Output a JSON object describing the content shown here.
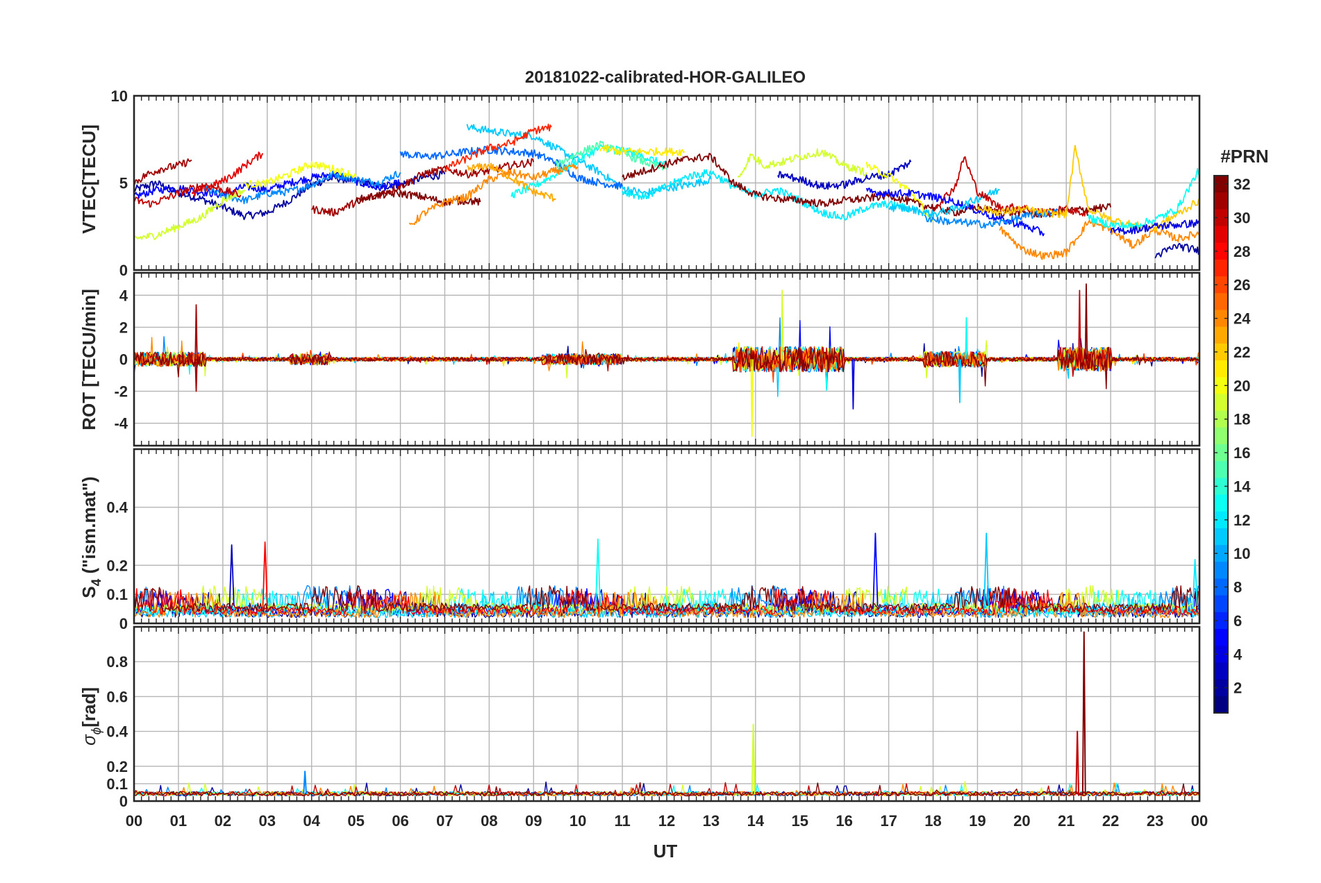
{
  "title": "20181022-calibrated-HOR-GALILEO",
  "xlabel": "UT",
  "x_tick_labels": [
    "00",
    "01",
    "02",
    "03",
    "04",
    "05",
    "06",
    "07",
    "08",
    "09",
    "10",
    "11",
    "12",
    "13",
    "14",
    "15",
    "16",
    "17",
    "18",
    "19",
    "20",
    "21",
    "22",
    "23",
    "00"
  ],
  "colorbar": {
    "title": "#PRN",
    "range": [
      1,
      32
    ],
    "tick_labels": [
      "2",
      "4",
      "6",
      "8",
      "10",
      "12",
      "14",
      "16",
      "18",
      "20",
      "22",
      "24",
      "26",
      "28",
      "30",
      "32"
    ],
    "colormap": "jet"
  },
  "panel_labels": {
    "vtec": "VTEC[TECU]",
    "rot": "ROT [TECU/min]",
    "s4_main": "S",
    "s4_sub": "4",
    "s4_rest": " (\"ism.mat\")",
    "sigma_main": "σ",
    "sigma_sub": "ϕ",
    "sigma_rest": "[rad]"
  },
  "chart_data": [
    {
      "type": "line",
      "name": "vtec",
      "ylabel": "VTEC[TECU]",
      "xlim": [
        0,
        24
      ],
      "ylim": [
        0,
        10
      ],
      "yticks": [
        0,
        5,
        10
      ],
      "series": [
        {
          "prn": 2,
          "x": [
            0.0,
            0.5,
            1.0,
            1.5,
            2.0,
            2.5,
            3.0,
            3.5,
            4.0,
            4.5,
            5.0,
            5.5,
            6.0,
            6.5,
            7.0
          ],
          "values": [
            4.6,
            5.0,
            4.4,
            4.1,
            3.6,
            3.1,
            3.3,
            4.0,
            4.9,
            5.3,
            5.1,
            4.8,
            4.9,
            5.3,
            5.5
          ]
        },
        {
          "prn": 5,
          "x": [
            0.0,
            0.5,
            1.0,
            1.5,
            2.0,
            2.5,
            3.0,
            3.5,
            4.0,
            4.5,
            5.0,
            5.5,
            6.0
          ],
          "values": [
            4.2,
            4.6,
            4.7,
            4.5,
            4.3,
            4.8,
            4.6,
            5.0,
            5.3,
            5.5,
            5.1,
            4.7,
            5.0
          ]
        },
        {
          "prn": 9,
          "x": [
            1.5,
            2.0,
            2.5,
            3.0,
            3.5,
            4.0,
            4.5,
            5.0,
            5.5,
            6.0
          ],
          "values": [
            4.7,
            4.3,
            4.0,
            4.4,
            4.5,
            4.9,
            5.5,
            5.2,
            5.0,
            5.6
          ]
        },
        {
          "prn": 11,
          "x": [
            7.5,
            8.0,
            8.5,
            9.0,
            9.5,
            10.0,
            10.5,
            11.0,
            11.5,
            12.0,
            12.5,
            13.0
          ],
          "values": [
            8.2,
            8.0,
            7.8,
            7.7,
            7.0,
            6.3,
            5.6,
            4.7,
            4.4,
            4.7,
            4.9,
            5.2
          ]
        },
        {
          "prn": 8,
          "x": [
            6.0,
            6.5,
            7.0,
            7.5,
            8.0,
            8.5,
            9.0,
            9.5,
            10.0,
            10.5,
            11.0
          ],
          "values": [
            6.7,
            6.5,
            6.6,
            6.8,
            6.9,
            6.8,
            6.7,
            6.2,
            5.3,
            5.0,
            4.8
          ]
        },
        {
          "prn": 13,
          "x": [
            8.5,
            9.0,
            9.5,
            10.0,
            10.5,
            11.0,
            11.5,
            12.0
          ],
          "values": [
            4.3,
            4.8,
            5.5,
            6.3,
            7.0,
            6.9,
            6.5,
            6.0
          ]
        },
        {
          "prn": 19,
          "x": [
            0.0,
            0.5,
            1.0,
            1.5,
            2.0,
            2.5
          ],
          "values": [
            1.8,
            2.0,
            2.5,
            3.0,
            4.0,
            4.6
          ]
        },
        {
          "prn": 20,
          "x": [
            2.5,
            3.0,
            3.5,
            4.0,
            4.5,
            5.0
          ],
          "values": [
            4.9,
            5.0,
            5.5,
            6.1,
            5.8,
            5.4
          ]
        },
        {
          "prn": 29,
          "x": [
            1.3,
            1.7,
            2.0,
            2.3,
            2.6,
            2.9
          ],
          "values": [
            4.3,
            4.8,
            5.1,
            5.6,
            6.2,
            6.7
          ]
        },
        {
          "prn": 31,
          "x": [
            0.0,
            0.3,
            0.6,
            1.0,
            1.3
          ],
          "values": [
            5.0,
            5.5,
            5.8,
            6.0,
            6.3
          ]
        },
        {
          "prn": 30,
          "x": [
            0.0,
            0.4,
            0.8,
            1.2,
            1.6,
            2.0,
            2.4
          ],
          "values": [
            4.0,
            3.8,
            4.2,
            4.6,
            4.9,
            4.6,
            4.3
          ]
        },
        {
          "prn": 31,
          "x": [
            4.0,
            4.5,
            5.0,
            5.5,
            6.0,
            6.5,
            7.0,
            7.5,
            8.0,
            8.5,
            9.0
          ],
          "values": [
            3.5,
            3.3,
            3.9,
            4.3,
            4.8,
            5.5,
            5.8,
            5.5,
            5.7,
            6.0,
            6.2
          ]
        },
        {
          "prn": 32,
          "x": [
            5.0,
            5.5,
            6.0,
            6.5,
            7.0,
            7.5,
            7.8
          ],
          "values": [
            4.0,
            4.3,
            4.4,
            4.2,
            3.9,
            4.0,
            3.9
          ]
        },
        {
          "prn": 24,
          "x": [
            6.2,
            6.5,
            7.0,
            7.5,
            8.0,
            8.5,
            9.0,
            9.5,
            10.0
          ],
          "values": [
            2.5,
            3.2,
            3.9,
            4.2,
            5.2,
            5.6,
            5.3,
            5.7,
            5.9
          ]
        },
        {
          "prn": 23,
          "x": [
            7.5,
            8.0,
            8.5,
            9.0,
            9.5
          ],
          "values": [
            5.8,
            6.0,
            5.3,
            4.5,
            4.1
          ]
        },
        {
          "prn": 27,
          "x": [
            7.0,
            7.5,
            8.0,
            8.5,
            9.0,
            9.4
          ],
          "values": [
            5.8,
            6.4,
            7.0,
            7.3,
            8.0,
            8.2
          ]
        },
        {
          "prn": 15,
          "x": [
            9.5,
            10.0,
            10.5,
            11.0,
            11.5,
            12.0
          ],
          "values": [
            6.0,
            6.7,
            7.2,
            6.7,
            6.2,
            5.8
          ]
        },
        {
          "prn": 21,
          "x": [
            10.5,
            11.0,
            11.5,
            12.0,
            12.4
          ],
          "values": [
            7.0,
            6.8,
            6.8,
            6.8,
            6.8
          ]
        },
        {
          "prn": 12,
          "x": [
            11.0,
            11.5,
            12.0,
            12.5,
            13.0,
            13.5,
            14.0,
            14.5,
            15.0,
            15.5,
            16.0,
            16.5,
            17.0,
            17.5
          ],
          "values": [
            4.5,
            4.2,
            4.8,
            5.4,
            5.6,
            4.8,
            4.3,
            4.6,
            4.0,
            3.3,
            3.0,
            3.6,
            3.8,
            3.5
          ]
        },
        {
          "prn": 32,
          "x": [
            11.0,
            11.5,
            12.0,
            12.5,
            13.0,
            13.5,
            14.0,
            14.5,
            15.0,
            15.5,
            16.0,
            16.5,
            17.0,
            17.5,
            18.0,
            18.5,
            19.0,
            19.5,
            20.0,
            20.5,
            21.0,
            21.5,
            22.0
          ],
          "values": [
            5.3,
            5.7,
            6.1,
            6.4,
            6.5,
            5.0,
            4.3,
            4.1,
            4.0,
            3.8,
            4.0,
            4.1,
            4.3,
            3.9,
            3.6,
            3.3,
            3.6,
            3.3,
            3.3,
            3.2,
            3.4,
            3.5,
            3.6
          ]
        },
        {
          "prn": 3,
          "x": [
            14.5,
            15.0,
            15.5,
            16.0,
            16.5,
            17.0,
            17.5
          ],
          "values": [
            5.5,
            5.2,
            4.8,
            4.9,
            5.3,
            5.5,
            6.2
          ]
        },
        {
          "prn": 19,
          "x": [
            13.6,
            13.9,
            14.2,
            14.6,
            15.0,
            15.5,
            16.0,
            16.5
          ],
          "values": [
            5.2,
            6.6,
            6.0,
            6.2,
            6.5,
            6.8,
            6.0,
            5.6
          ]
        },
        {
          "prn": 20,
          "x": [
            16.5,
            17.0,
            17.5,
            18.0
          ],
          "values": [
            6.0,
            5.4,
            4.5,
            2.8
          ]
        },
        {
          "prn": 5,
          "x": [
            16.5,
            17.0,
            17.5,
            18.0,
            18.5,
            19.0,
            19.5,
            20.0,
            20.5
          ],
          "values": [
            4.5,
            4.4,
            4.4,
            4.2,
            3.9,
            3.4,
            2.9,
            2.6,
            2.1
          ]
        },
        {
          "prn": 11,
          "x": [
            17.0,
            17.5,
            18.0,
            18.5,
            19.0,
            19.5
          ],
          "values": [
            3.6,
            3.5,
            3.2,
            3.5,
            4.1,
            4.6
          ]
        },
        {
          "prn": 30,
          "x": [
            18.0,
            18.5,
            18.7,
            19.0,
            19.5,
            20.0,
            20.5,
            21.0,
            21.5
          ],
          "values": [
            3.5,
            4.8,
            6.5,
            4.5,
            3.6,
            3.6,
            3.3,
            3.5,
            3.2
          ]
        },
        {
          "prn": 9,
          "x": [
            17.8,
            18.3,
            18.8,
            19.3,
            19.8,
            20.3,
            20.8
          ],
          "values": [
            3.0,
            2.8,
            2.7,
            2.6,
            2.9,
            3.2,
            3.3
          ]
        },
        {
          "prn": 24,
          "x": [
            19.5,
            20.0,
            20.5,
            21.0,
            21.5,
            22.0,
            22.5,
            23.0,
            23.5,
            24.0
          ],
          "values": [
            2.4,
            1.2,
            0.8,
            1.0,
            2.8,
            2.3,
            1.4,
            2.3,
            1.8,
            2.1
          ]
        },
        {
          "prn": 22,
          "x": [
            19.0,
            19.5,
            20.0,
            20.5,
            21.0,
            21.2,
            21.5,
            22.0,
            22.5,
            23.0,
            23.5,
            24.0
          ],
          "values": [
            3.6,
            3.3,
            3.5,
            3.3,
            3.2,
            7.0,
            3.5,
            2.9,
            2.6,
            2.4,
            3.2,
            4.0
          ]
        },
        {
          "prn": 13,
          "x": [
            21.5,
            22.0,
            22.5,
            23.0,
            23.5,
            24.0
          ],
          "values": [
            3.0,
            2.6,
            2.5,
            2.9,
            3.5,
            5.8
          ]
        },
        {
          "prn": 4,
          "x": [
            22.0,
            22.5,
            23.0,
            23.5,
            24.0
          ],
          "values": [
            2.2,
            2.3,
            2.5,
            2.6,
            2.7
          ]
        },
        {
          "prn": 2,
          "x": [
            23.0,
            23.5,
            24.0
          ],
          "values": [
            0.8,
            1.4,
            1.1
          ]
        }
      ]
    },
    {
      "type": "line",
      "name": "rot",
      "ylabel": "ROT [TECU/min]",
      "xlim": [
        0,
        24
      ],
      "ylim": [
        -5.4,
        5.4
      ],
      "yticks": [
        -4,
        -2,
        0,
        2,
        4
      ],
      "spikes": [
        {
          "prn": 31,
          "x": 1.4,
          "value": 3.4
        },
        {
          "prn": 31,
          "x": 1.4,
          "value": -2.0
        },
        {
          "prn": 20,
          "x": 13.92,
          "value": -4.8
        },
        {
          "prn": 19,
          "x": 14.6,
          "value": 4.3
        },
        {
          "prn": 4,
          "x": 16.2,
          "value": -3.1
        },
        {
          "prn": 30,
          "x": 21.3,
          "value": 4.3
        },
        {
          "prn": 32,
          "x": 21.45,
          "value": 4.7
        },
        {
          "prn": 11,
          "x": 18.6,
          "value": -2.7
        },
        {
          "prn": 13,
          "x": 18.75,
          "value": 2.6
        }
      ]
    },
    {
      "type": "line",
      "name": "s4",
      "ylabel": "S4 (\"ism.mat\")",
      "xlim": [
        0,
        24
      ],
      "ylim": [
        0,
        0.6
      ],
      "yticks": [
        0,
        0.1,
        0.2,
        0.4
      ],
      "peaks": [
        {
          "prn": 3,
          "x": 2.2,
          "value": 0.27
        },
        {
          "prn": 28,
          "x": 2.95,
          "value": 0.28
        },
        {
          "prn": 13,
          "x": 10.45,
          "value": 0.29
        },
        {
          "prn": 5,
          "x": 16.7,
          "value": 0.31
        },
        {
          "prn": 11,
          "x": 19.2,
          "value": 0.31
        },
        {
          "prn": 12,
          "x": 23.9,
          "value": 0.22
        }
      ]
    },
    {
      "type": "line",
      "name": "sigma_phi",
      "ylabel": "σϕ [rad]",
      "xlim": [
        0,
        24
      ],
      "ylim": [
        0,
        1.0
      ],
      "yticks": [
        0,
        0.1,
        0.2,
        0.4,
        0.6,
        0.8
      ],
      "peaks": [
        {
          "prn": 19,
          "x": 13.95,
          "value": 0.44
        },
        {
          "prn": 32,
          "x": 21.4,
          "value": 0.97
        },
        {
          "prn": 30,
          "x": 21.25,
          "value": 0.4
        },
        {
          "prn": 9,
          "x": 3.85,
          "value": 0.17
        }
      ]
    }
  ]
}
